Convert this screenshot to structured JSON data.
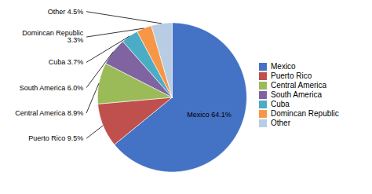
{
  "chart_data": {
    "type": "pie",
    "categories": [
      "Mexico",
      "Puerto Rico",
      "Central America",
      "South America",
      "Cuba",
      "Domincan Republic",
      "Other"
    ],
    "values": [
      64.1,
      9.5,
      8.9,
      6.0,
      3.7,
      3.3,
      4.5
    ],
    "value_labels": [
      "Mexico 64.1%",
      "Puerto Rico 9.5%",
      "Central America 8.9%",
      "South America 6.0%",
      "Cuba 3.7%",
      "Domincan Republic\n3.3%",
      "Other 4.5%"
    ],
    "colors": [
      "#4472C4",
      "#C0504D",
      "#9BBB59",
      "#8064A2",
      "#4BACC6",
      "#F79646",
      "#B8CCE4"
    ],
    "data_labels": true,
    "legend": "right"
  }
}
